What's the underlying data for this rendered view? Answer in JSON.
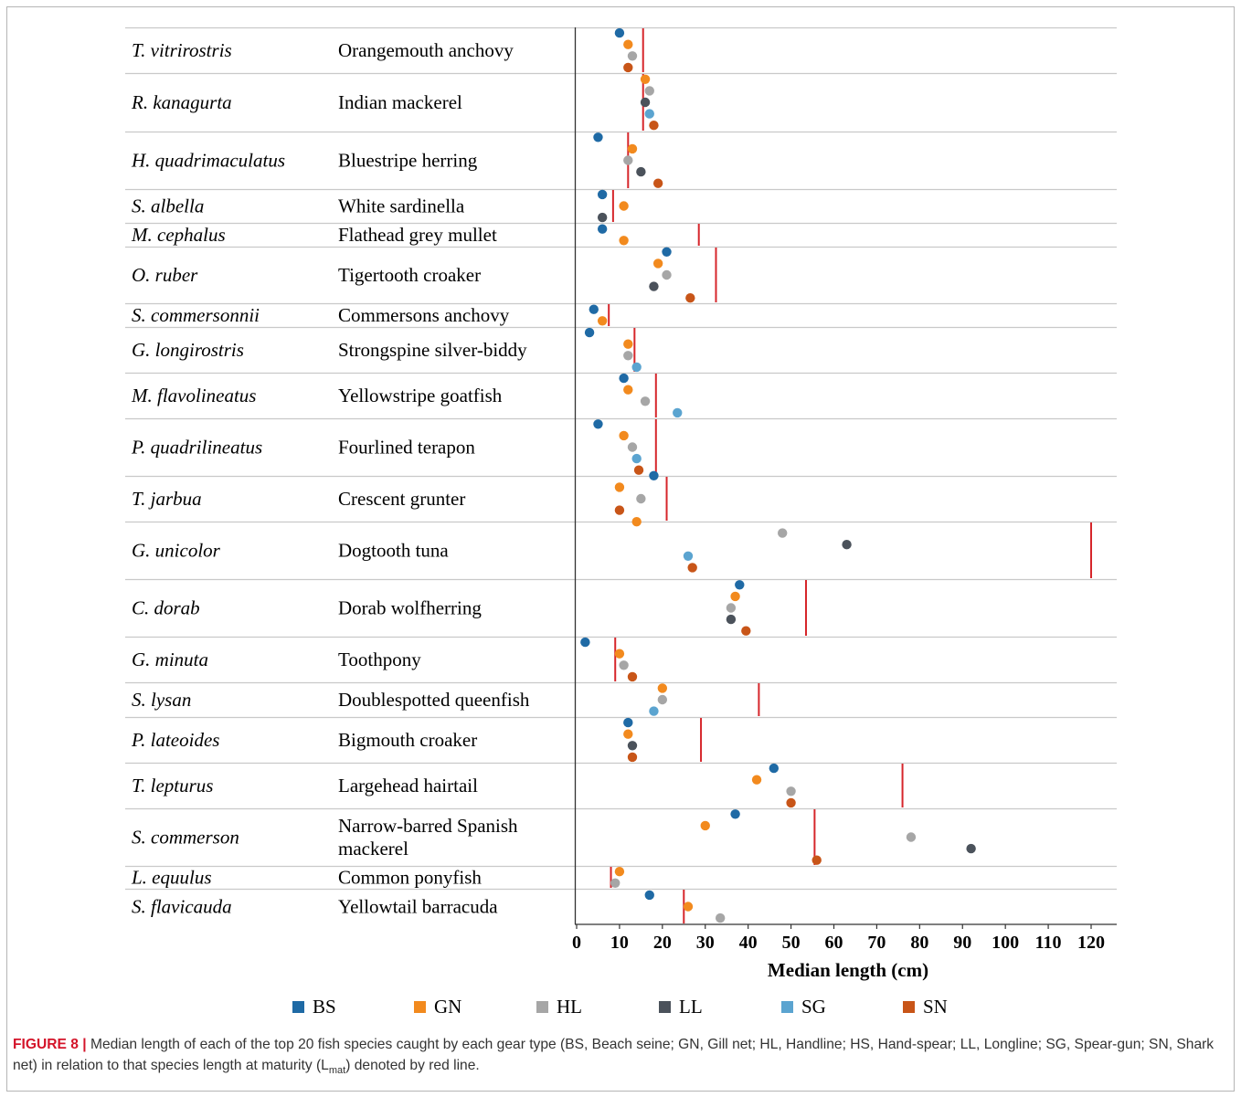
{
  "chart_data": {
    "type": "scatter",
    "orientation": "horizontal",
    "xlabel": "Median length (cm)",
    "xlim": [
      0,
      120
    ],
    "xticks": [
      0,
      10,
      20,
      30,
      40,
      50,
      60,
      70,
      80,
      90,
      100,
      110,
      120
    ],
    "legend_position": "bottom",
    "series": [
      {
        "name": "BS",
        "color": "#1f6aa5"
      },
      {
        "name": "GN",
        "color": "#f28a1e"
      },
      {
        "name": "HL",
        "color": "#a6a6a6"
      },
      {
        "name": "LL",
        "color": "#4b525b"
      },
      {
        "name": "SG",
        "color": "#5ba4d0"
      },
      {
        "name": "SN",
        "color": "#c85518"
      }
    ],
    "lmat_color": "#d6262b",
    "rows": [
      {
        "sci": "T. vitrirostris",
        "common": [
          "Orangemouth anchovy"
        ],
        "lmat": 15.5,
        "points": [
          {
            "gear": "BS",
            "value": 10
          },
          {
            "gear": "GN",
            "value": 12
          },
          {
            "gear": "HL",
            "value": 13
          },
          {
            "gear": "SN",
            "value": 12
          }
        ]
      },
      {
        "sci": "R. kanagurta",
        "common": [
          "Indian mackerel"
        ],
        "lmat": 15.5,
        "points": [
          {
            "gear": "GN",
            "value": 16
          },
          {
            "gear": "HL",
            "value": 17
          },
          {
            "gear": "LL",
            "value": 16
          },
          {
            "gear": "SG",
            "value": 17
          },
          {
            "gear": "SN",
            "value": 18
          }
        ]
      },
      {
        "sci": "H. quadrimaculatus",
        "common": [
          "Bluestripe herring"
        ],
        "lmat": 12,
        "points": [
          {
            "gear": "BS",
            "value": 5
          },
          {
            "gear": "GN",
            "value": 13
          },
          {
            "gear": "HL",
            "value": 12
          },
          {
            "gear": "LL",
            "value": 15
          },
          {
            "gear": "SN",
            "value": 19
          }
        ]
      },
      {
        "sci": "S. albella",
        "common": [
          "White sardinella"
        ],
        "lmat": 8.5,
        "points": [
          {
            "gear": "BS",
            "value": 6
          },
          {
            "gear": "GN",
            "value": 11
          },
          {
            "gear": "LL",
            "value": 6
          }
        ]
      },
      {
        "sci": "M. cephalus",
        "common": [
          "Flathead grey mullet"
        ],
        "lmat": 28.5,
        "points": [
          {
            "gear": "BS",
            "value": 6
          },
          {
            "gear": "GN",
            "value": 11
          }
        ]
      },
      {
        "sci": "O. ruber",
        "common": [
          "Tigertooth croaker"
        ],
        "lmat": 32.5,
        "points": [
          {
            "gear": "BS",
            "value": 21
          },
          {
            "gear": "GN",
            "value": 19
          },
          {
            "gear": "HL",
            "value": 21
          },
          {
            "gear": "LL",
            "value": 18
          },
          {
            "gear": "SN",
            "value": 26.5
          }
        ]
      },
      {
        "sci": "S. commersonnii",
        "common": [
          "Commersons anchovy"
        ],
        "lmat": 7.5,
        "points": [
          {
            "gear": "BS",
            "value": 4
          },
          {
            "gear": "GN",
            "value": 6
          }
        ]
      },
      {
        "sci": "G. longirostris",
        "common": [
          "Strongspine silver-biddy"
        ],
        "lmat": 13.5,
        "points": [
          {
            "gear": "BS",
            "value": 3
          },
          {
            "gear": "GN",
            "value": 12
          },
          {
            "gear": "HL",
            "value": 12
          },
          {
            "gear": "SG",
            "value": 14
          }
        ]
      },
      {
        "sci": "M. flavolineatus",
        "common": [
          "Yellowstripe goatfish"
        ],
        "lmat": 18.5,
        "points": [
          {
            "gear": "BS",
            "value": 11
          },
          {
            "gear": "GN",
            "value": 12
          },
          {
            "gear": "HL",
            "value": 16
          },
          {
            "gear": "SG",
            "value": 23.5
          }
        ]
      },
      {
        "sci": "P. quadrilineatus",
        "common": [
          "Fourlined terapon"
        ],
        "lmat": 18.5,
        "points": [
          {
            "gear": "BS",
            "value": 5
          },
          {
            "gear": "GN",
            "value": 11
          },
          {
            "gear": "HL",
            "value": 13
          },
          {
            "gear": "SG",
            "value": 14
          },
          {
            "gear": "SN",
            "value": 14.5
          }
        ]
      },
      {
        "sci": "T. jarbua",
        "common": [
          "Crescent grunter"
        ],
        "lmat": 21,
        "points": [
          {
            "gear": "BS",
            "value": 18
          },
          {
            "gear": "GN",
            "value": 10
          },
          {
            "gear": "HL",
            "value": 15
          },
          {
            "gear": "SN",
            "value": 10
          },
          {
            "gear": "GN",
            "value": 14
          }
        ]
      },
      {
        "sci": "G. unicolor",
        "common": [
          "Dogtooth tuna"
        ],
        "lmat": 120,
        "points": [
          {
            "gear": "HL",
            "value": 48
          },
          {
            "gear": "LL",
            "value": 63
          },
          {
            "gear": "SG",
            "value": 26
          },
          {
            "gear": "SN",
            "value": 27
          }
        ]
      },
      {
        "sci": "C. dorab",
        "common": [
          "Dorab wolfherring"
        ],
        "lmat": 53.5,
        "points": [
          {
            "gear": "BS",
            "value": 38
          },
          {
            "gear": "GN",
            "value": 37
          },
          {
            "gear": "HL",
            "value": 36
          },
          {
            "gear": "LL",
            "value": 36
          },
          {
            "gear": "SN",
            "value": 39.5
          }
        ]
      },
      {
        "sci": "G. minuta",
        "common": [
          "Toothpony"
        ],
        "lmat": 9,
        "points": [
          {
            "gear": "BS",
            "value": 2
          },
          {
            "gear": "GN",
            "value": 10
          },
          {
            "gear": "HL",
            "value": 11
          },
          {
            "gear": "SN",
            "value": 13
          }
        ]
      },
      {
        "sci": "S. lysan",
        "common": [
          "Doublespotted queenfish"
        ],
        "lmat": 42.5,
        "points": [
          {
            "gear": "GN",
            "value": 20
          },
          {
            "gear": "HL",
            "value": 20
          },
          {
            "gear": "SG",
            "value": 18
          }
        ]
      },
      {
        "sci": "P. lateoides",
        "common": [
          "Bigmouth croaker"
        ],
        "lmat": 29,
        "points": [
          {
            "gear": "BS",
            "value": 12
          },
          {
            "gear": "GN",
            "value": 12
          },
          {
            "gear": "LL",
            "value": 13
          },
          {
            "gear": "SN",
            "value": 13
          }
        ]
      },
      {
        "sci": "T. lepturus",
        "common": [
          "Largehead hairtail"
        ],
        "lmat": 76,
        "points": [
          {
            "gear": "BS",
            "value": 46
          },
          {
            "gear": "GN",
            "value": 42
          },
          {
            "gear": "HL",
            "value": 50
          },
          {
            "gear": "SN",
            "value": 50
          }
        ]
      },
      {
        "sci": "S. commerson",
        "common": [
          "Narrow-barred Spanish",
          "mackerel"
        ],
        "lmat": 55.5,
        "points": [
          {
            "gear": "BS",
            "value": 37
          },
          {
            "gear": "GN",
            "value": 30
          },
          {
            "gear": "HL",
            "value": 78
          },
          {
            "gear": "LL",
            "value": 92
          },
          {
            "gear": "SN",
            "value": 56
          }
        ]
      },
      {
        "sci": "L. equulus",
        "common": [
          "Common ponyfish"
        ],
        "lmat": 8,
        "points": [
          {
            "gear": "GN",
            "value": 10
          },
          {
            "gear": "HL",
            "value": 9
          }
        ]
      },
      {
        "sci": "S. flavicauda",
        "common": [
          "Yellowtail barracuda"
        ],
        "lmat": 25,
        "points": [
          {
            "gear": "BS",
            "value": 17
          },
          {
            "gear": "GN",
            "value": 26
          },
          {
            "gear": "HL",
            "value": 33.5
          }
        ]
      }
    ]
  },
  "caption": {
    "label": "FIGURE 8 |",
    "text": " Median length of each of the top 20 fish species caught by each gear type (BS, Beach seine; GN, Gill net; HL, Handline; HS, Hand-spear; LL, Longline; SG, Spear-gun; SN, Shark net) in relation to that species length at maturity (",
    "lmat_main": "L",
    "lmat_sub": "mat",
    "text_end": ") denoted by red line."
  }
}
